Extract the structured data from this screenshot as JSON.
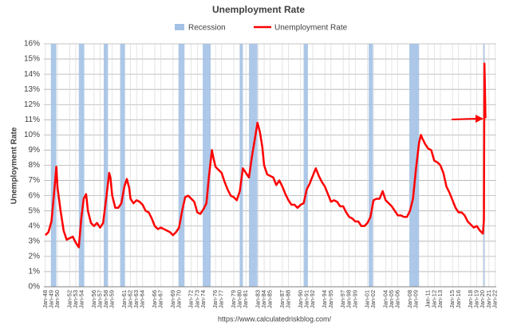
{
  "chart_data": {
    "type": "line",
    "title": "Unemployment Rate",
    "y_label": "Unemployment Rate",
    "source": "https://www.calculatedriskblog.com/",
    "recession": {
      "name": "Recession",
      "color": "#a4c2e6",
      "ranges": [
        [
          1948.9,
          1949.8
        ],
        [
          1953.5,
          1954.4
        ],
        [
          1957.6,
          1958.3
        ],
        [
          1960.3,
          1961.1
        ],
        [
          1969.9,
          1970.9
        ],
        [
          1973.9,
          1975.2
        ],
        [
          1980.0,
          1980.5
        ],
        [
          1981.5,
          1982.9
        ],
        [
          1990.5,
          1991.2
        ],
        [
          2001.2,
          2001.9
        ],
        [
          2007.9,
          2009.5
        ],
        [
          2020.1,
          2020.3
        ]
      ]
    },
    "x": [
      1948.0,
      1948.5,
      1949.0,
      1949.5,
      1949.8,
      1950.0,
      1950.5,
      1951.0,
      1951.5,
      1952.0,
      1952.5,
      1953.0,
      1953.5,
      1953.9,
      1954.3,
      1954.7,
      1955.0,
      1955.5,
      1956.0,
      1956.5,
      1957.0,
      1957.5,
      1958.0,
      1958.5,
      1958.7,
      1959.0,
      1959.5,
      1960.0,
      1960.5,
      1961.0,
      1961.4,
      1961.8,
      1962.0,
      1962.5,
      1963.0,
      1963.5,
      1964.0,
      1964.5,
      1965.0,
      1965.5,
      1966.0,
      1966.5,
      1967.0,
      1967.5,
      1968.0,
      1968.5,
      1969.0,
      1969.5,
      1970.0,
      1970.5,
      1971.0,
      1971.5,
      1972.0,
      1972.5,
      1973.0,
      1973.5,
      1974.0,
      1974.5,
      1974.9,
      1975.4,
      1975.7,
      1976.0,
      1976.5,
      1977.0,
      1977.5,
      1978.0,
      1978.5,
      1979.0,
      1979.5,
      1980.0,
      1980.5,
      1981.0,
      1981.5,
      1982.0,
      1982.5,
      1982.9,
      1983.3,
      1983.7,
      1984.0,
      1984.5,
      1985.0,
      1985.5,
      1986.0,
      1986.5,
      1987.0,
      1987.5,
      1988.0,
      1988.5,
      1989.0,
      1989.5,
      1990.0,
      1990.5,
      1991.0,
      1991.5,
      1992.0,
      1992.5,
      1993.0,
      1993.5,
      1994.0,
      1994.5,
      1995.0,
      1995.5,
      1996.0,
      1996.5,
      1997.0,
      1997.5,
      1998.0,
      1998.5,
      1999.0,
      1999.5,
      2000.0,
      2000.5,
      2001.0,
      2001.5,
      2002.0,
      2002.5,
      2003.0,
      2003.5,
      2004.0,
      2004.5,
      2005.0,
      2005.5,
      2006.0,
      2006.5,
      2007.0,
      2007.5,
      2008.0,
      2008.5,
      2009.0,
      2009.5,
      2009.8,
      2010.0,
      2010.5,
      2011.0,
      2011.5,
      2012.0,
      2012.5,
      2013.0,
      2013.5,
      2014.0,
      2014.5,
      2015.0,
      2015.5,
      2016.0,
      2016.5,
      2017.0,
      2017.5,
      2018.0,
      2018.5,
      2019.0,
      2019.5,
      2020.0,
      2020.17,
      2020.25,
      2020.33,
      2020.42
    ],
    "series": [
      {
        "name": "Unemployment Rate",
        "color": "#ff0000",
        "values": [
          3.4,
          3.6,
          4.3,
          6.5,
          7.9,
          6.5,
          5.0,
          3.7,
          3.1,
          3.2,
          3.3,
          2.9,
          2.6,
          4.5,
          5.8,
          6.1,
          5.0,
          4.2,
          4.0,
          4.2,
          3.9,
          4.2,
          5.8,
          7.5,
          7.2,
          6.0,
          5.2,
          5.2,
          5.5,
          6.6,
          7.1,
          6.5,
          5.8,
          5.5,
          5.7,
          5.6,
          5.4,
          5.0,
          4.9,
          4.5,
          4.0,
          3.8,
          3.9,
          3.8,
          3.7,
          3.6,
          3.4,
          3.6,
          3.9,
          5.0,
          5.9,
          6.0,
          5.8,
          5.6,
          4.9,
          4.8,
          5.1,
          5.5,
          7.2,
          9.0,
          8.4,
          7.9,
          7.7,
          7.5,
          6.9,
          6.4,
          6.0,
          5.9,
          5.7,
          6.3,
          7.8,
          7.5,
          7.2,
          8.6,
          9.8,
          10.8,
          10.2,
          9.2,
          8.0,
          7.4,
          7.3,
          7.2,
          6.7,
          7.0,
          6.6,
          6.1,
          5.7,
          5.4,
          5.4,
          5.2,
          5.4,
          5.5,
          6.4,
          6.8,
          7.3,
          7.8,
          7.3,
          6.9,
          6.6,
          6.1,
          5.6,
          5.7,
          5.6,
          5.3,
          5.3,
          4.9,
          4.6,
          4.5,
          4.3,
          4.3,
          4.0,
          4.0,
          4.2,
          4.6,
          5.7,
          5.8,
          5.8,
          6.3,
          5.7,
          5.5,
          5.3,
          5.0,
          4.7,
          4.7,
          4.6,
          4.6,
          5.0,
          5.8,
          7.8,
          9.5,
          10.0,
          9.8,
          9.4,
          9.1,
          9.0,
          8.3,
          8.2,
          8.0,
          7.5,
          6.6,
          6.2,
          5.7,
          5.2,
          4.9,
          4.9,
          4.7,
          4.3,
          4.1,
          3.9,
          4.0,
          3.7,
          3.5,
          4.4,
          14.7,
          13.3,
          11.1
        ]
      }
    ],
    "xlim": [
      1947.75,
      2022.2
    ],
    "ylim": [
      0,
      16
    ],
    "yticks": [
      {
        "value": 0,
        "label": "0%"
      },
      {
        "value": 1,
        "label": "1%"
      },
      {
        "value": 2,
        "label": "2%"
      },
      {
        "value": 3,
        "label": "3%"
      },
      {
        "value": 4,
        "label": "4%"
      },
      {
        "value": 5,
        "label": "5%"
      },
      {
        "value": 6,
        "label": "6%"
      },
      {
        "value": 7,
        "label": "7%"
      },
      {
        "value": 8,
        "label": "8%"
      },
      {
        "value": 9,
        "label": "9%"
      },
      {
        "value": 10,
        "label": "10%"
      },
      {
        "value": 11,
        "label": "11%"
      },
      {
        "value": 12,
        "label": "12%"
      },
      {
        "value": 13,
        "label": "13%"
      },
      {
        "value": 14,
        "label": "14%"
      },
      {
        "value": 15,
        "label": "15%"
      },
      {
        "value": 16,
        "label": "16%"
      }
    ],
    "xticks": [
      {
        "value": 1948,
        "label": "Jan-48"
      },
      {
        "value": 1949,
        "label": "Jan-49"
      },
      {
        "value": 1950,
        "label": "Jan-50"
      },
      {
        "value": 1952,
        "label": "Jan-52"
      },
      {
        "value": 1953,
        "label": "Jan-53"
      },
      {
        "value": 1954,
        "label": "Jan-54"
      },
      {
        "value": 1956,
        "label": "Jan-56"
      },
      {
        "value": 1957,
        "label": "Jan-57"
      },
      {
        "value": 1958,
        "label": "Jan-58"
      },
      {
        "value": 1959,
        "label": "Jan-59"
      },
      {
        "value": 1961,
        "label": "Jan-61"
      },
      {
        "value": 1962,
        "label": "Jan-62"
      },
      {
        "value": 1963,
        "label": "Jan-63"
      },
      {
        "value": 1964,
        "label": "Jan-64"
      },
      {
        "value": 1966,
        "label": "Jan-66"
      },
      {
        "value": 1967,
        "label": "Jan-67"
      },
      {
        "value": 1969,
        "label": "Jan-69"
      },
      {
        "value": 1970,
        "label": "Jan-70"
      },
      {
        "value": 1972,
        "label": "Jan-72"
      },
      {
        "value": 1973,
        "label": "Jan-73"
      },
      {
        "value": 1974,
        "label": "Jan-74"
      },
      {
        "value": 1976,
        "label": "Jan-76"
      },
      {
        "value": 1977,
        "label": "Jan-77"
      },
      {
        "value": 1979,
        "label": "Jan-79"
      },
      {
        "value": 1980,
        "label": "Jan-80"
      },
      {
        "value": 1981,
        "label": "Jan-81"
      },
      {
        "value": 1983,
        "label": "Jan-83"
      },
      {
        "value": 1984,
        "label": "Jan-84"
      },
      {
        "value": 1985,
        "label": "Jan-85"
      },
      {
        "value": 1987,
        "label": "Jan-87"
      },
      {
        "value": 1988,
        "label": "Jan-88"
      },
      {
        "value": 1990,
        "label": "Jan-90"
      },
      {
        "value": 1991,
        "label": "Jan-91"
      },
      {
        "value": 1992,
        "label": "Jan-92"
      },
      {
        "value": 1994,
        "label": "Jan-94"
      },
      {
        "value": 1995,
        "label": "Jan-95"
      },
      {
        "value": 1997,
        "label": "Jan-97"
      },
      {
        "value": 1998,
        "label": "Jan-98"
      },
      {
        "value": 1999,
        "label": "Jan-99"
      },
      {
        "value": 2001,
        "label": "Jan-01"
      },
      {
        "value": 2002,
        "label": "Jan-02"
      },
      {
        "value": 2004,
        "label": "Jan-04"
      },
      {
        "value": 2005,
        "label": "Jan-05"
      },
      {
        "value": 2006,
        "label": "Jan-06"
      },
      {
        "value": 2008,
        "label": "Jan-08"
      },
      {
        "value": 2009,
        "label": "Jan-09"
      },
      {
        "value": 2011,
        "label": "Jan-11"
      },
      {
        "value": 2012,
        "label": "Jan-12"
      },
      {
        "value": 2013,
        "label": "Jan-13"
      },
      {
        "value": 2015,
        "label": "Jan-15"
      },
      {
        "value": 2016,
        "label": "Jan-16"
      },
      {
        "value": 2018,
        "label": "Jan-18"
      },
      {
        "value": 2019,
        "label": "Jan-19"
      },
      {
        "value": 2020,
        "label": "Jan-20"
      },
      {
        "value": 2021,
        "label": "Jan-21"
      },
      {
        "value": 2022,
        "label": "Jan-22"
      }
    ],
    "grid": true
  }
}
